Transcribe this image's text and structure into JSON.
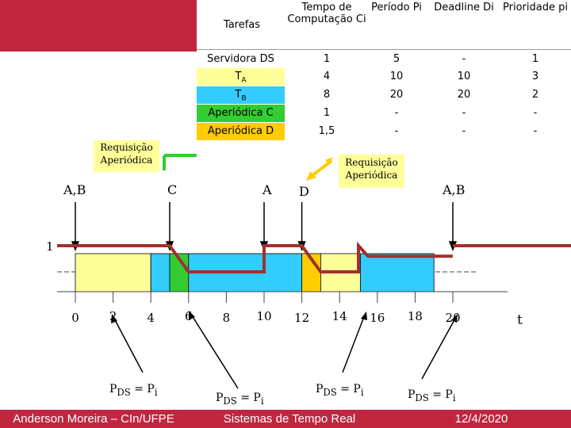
{
  "table": {
    "headers": [
      "Tarefas",
      "Tempo de Computação Ci",
      "Período Pi",
      "Deadline Di",
      "Prioridade pi"
    ],
    "rows": [
      {
        "task": "Servidora DS",
        "c": "1",
        "p": "5",
        "d": "-",
        "prio": "1",
        "color": "#ffffff"
      },
      {
        "task": "TA",
        "c": "4",
        "p": "10",
        "d": "10",
        "prio": "3",
        "color": "#ffff99"
      },
      {
        "task": "TB",
        "c": "8",
        "p": "20",
        "d": "20",
        "prio": "2",
        "color": "#33ccff"
      },
      {
        "task": "Aperiódica C",
        "c": "1",
        "p": "-",
        "d": "-",
        "prio": "-",
        "color": "#33cc33"
      },
      {
        "task": "Aperiódica D",
        "c": "1,5",
        "p": "-",
        "d": "-",
        "prio": "-",
        "color": "#ffcc00"
      }
    ]
  },
  "callouts": {
    "left": "Requisição Aperiódica",
    "right": "Requisição Aperiódica"
  },
  "arrivals": {
    "ab_left": "A,B",
    "c": "C",
    "a": "A",
    "d": "D",
    "ab_right": "A,B"
  },
  "y_label": "1",
  "x_ticks": [
    "0",
    "2",
    "4",
    "6",
    "8",
    "10",
    "12",
    "14",
    "16",
    "18",
    "20"
  ],
  "x_axis_label": "t",
  "pds_labels": [
    "PDS = Pi",
    "PDS = Pi",
    "PDS = Pi",
    "PDS = Pi"
  ],
  "footer": {
    "author": "Anderson Moreira – CIn/UFPE",
    "course": "Sistemas de Tempo Real",
    "date": "12/4/2020"
  },
  "colors": {
    "accent": "#c0263e",
    "ta": "#ffff99",
    "tb": "#33ccff",
    "c": "#33cc33",
    "d": "#ffcc00",
    "server": "#a03030"
  }
}
